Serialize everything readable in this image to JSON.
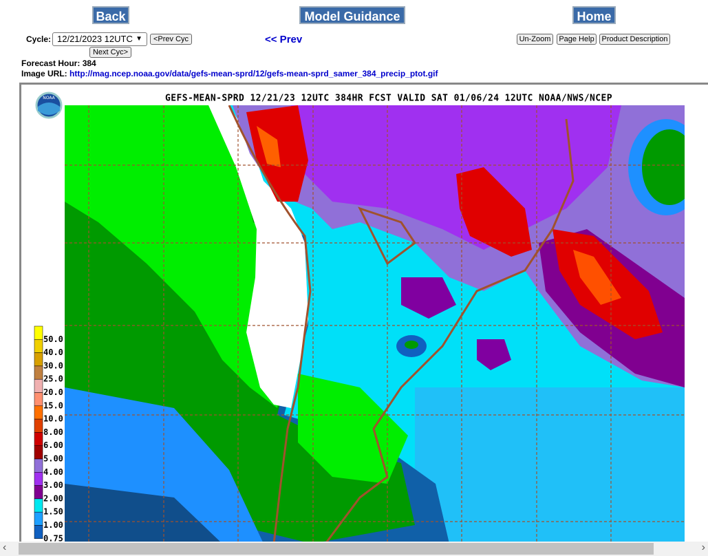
{
  "nav": {
    "back": "Back",
    "model_guidance": "Model Guidance",
    "home": "Home"
  },
  "controls": {
    "cycle_label": "Cycle:",
    "cycle_value": "12/21/2023 12UTC",
    "prev_cyc": "<Prev Cyc",
    "next_cyc": "Next Cyc>",
    "prev": "<< Prev",
    "un_zoom": "Un-Zoom",
    "page_help": "Page Help",
    "product_description": "Product Description"
  },
  "info": {
    "forecast_hour_label": "Forecast Hour:",
    "forecast_hour": "384",
    "image_url_label": "Image URL:",
    "image_url": "http://mag.ncep.noaa.gov/data/gefs-mean-sprd/12/gefs-mean-sprd_samer_384_precip_ptot.gif"
  },
  "map": {
    "title": "GEFS-MEAN-SPRD 12/21/23 12UTC 384HR FCST VALID SAT 01/06/24 12UTC NOAA/NWS/NCEP",
    "logo": "NOAA",
    "legend": [
      {
        "label": "50.0",
        "color": "#ffff00"
      },
      {
        "label": "40.0",
        "color": "#f0d000"
      },
      {
        "label": "30.0",
        "color": "#d8a000"
      },
      {
        "label": "25.0",
        "color": "#c08040"
      },
      {
        "label": "20.0",
        "color": "#f0b0b0"
      },
      {
        "label": "15.0",
        "color": "#ff9070"
      },
      {
        "label": "10.0",
        "color": "#ff7000"
      },
      {
        "label": "8.00",
        "color": "#e04000"
      },
      {
        "label": "6.00",
        "color": "#d00000"
      },
      {
        "label": "5.00",
        "color": "#a00000"
      },
      {
        "label": "4.00",
        "color": "#9070d8"
      },
      {
        "label": "3.00",
        "color": "#a030f0"
      },
      {
        "label": "2.00",
        "color": "#800090"
      },
      {
        "label": "1.50",
        "color": "#00e8f0"
      },
      {
        "label": "1.00",
        "color": "#1ea0ff"
      },
      {
        "label": "0.75",
        "color": "#1060c0"
      }
    ]
  }
}
